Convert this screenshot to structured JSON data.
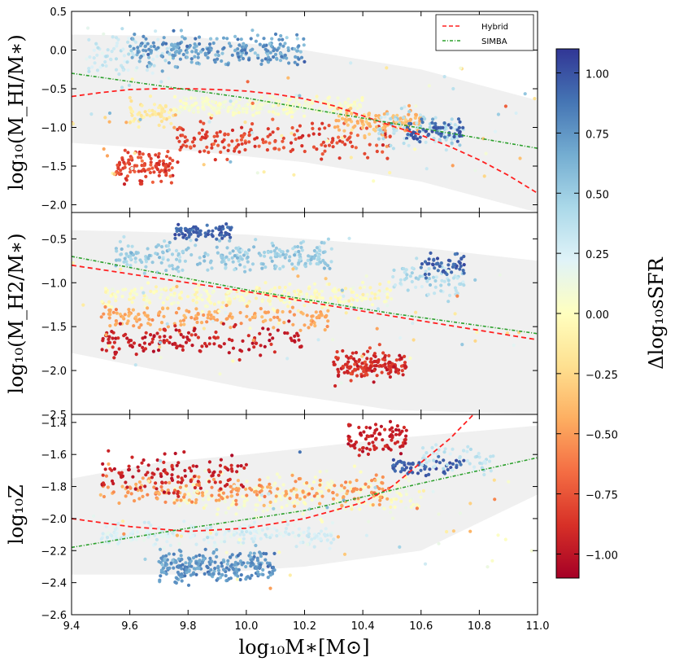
{
  "chart_data": {
    "type": "scatter",
    "colorbar": {
      "label": "Δlog₁₀sSFR",
      "range": [
        -1.1,
        1.1
      ],
      "ticks": [
        "1.00",
        "0.75",
        "0.50",
        "0.25",
        "0.00",
        "−0.25",
        "−0.50",
        "−0.75",
        "−1.00"
      ],
      "tick_values": [
        1.0,
        0.75,
        0.5,
        0.25,
        0.0,
        -0.25,
        -0.5,
        -0.75,
        -1.0
      ],
      "colormap": "RdYlBu"
    },
    "x": {
      "label": "log₁₀M∗[M⊙]",
      "range": [
        9.4,
        11.0
      ],
      "tick_values": [
        9.4,
        9.6,
        9.8,
        10.0,
        10.2,
        10.4,
        10.6,
        10.8,
        11.0
      ],
      "tick_labels": [
        "9.4",
        "9.6",
        "9.8",
        "10.0",
        "10.2",
        "10.4",
        "10.6",
        "10.8",
        "11.0"
      ]
    },
    "legend": {
      "position": "top-right",
      "entries": [
        {
          "name": "Hybrid",
          "color": "#ff2020",
          "style": "dashed"
        },
        {
          "name": "SIMBA",
          "color": "#2ca02c",
          "style": "dashdot"
        }
      ]
    },
    "panels": [
      {
        "ylabel": "log₁₀(M_HI/M∗)",
        "ylim": [
          -2.1,
          0.5
        ],
        "yticks": [
          0.5,
          0.0,
          -0.5,
          -1.0,
          -1.5,
          -2.0
        ],
        "ytick_labels": [
          "0.5",
          "0.0",
          "−0.5",
          "−1.0",
          "−1.5",
          "−2.0"
        ],
        "band_upper": [
          [
            9.4,
            0.2
          ],
          [
            9.8,
            0.18
          ],
          [
            10.2,
            0.0
          ],
          [
            10.6,
            -0.25
          ],
          [
            11.0,
            -0.65
          ]
        ],
        "band_lower": [
          [
            9.4,
            -1.2
          ],
          [
            9.8,
            -1.3
          ],
          [
            10.2,
            -1.45
          ],
          [
            10.6,
            -1.7
          ],
          [
            11.0,
            -2.1
          ]
        ],
        "hybrid": [
          [
            9.4,
            -0.6
          ],
          [
            9.5,
            -0.55
          ],
          [
            9.6,
            -0.51
          ],
          [
            9.7,
            -0.5
          ],
          [
            9.8,
            -0.5
          ],
          [
            9.9,
            -0.51
          ],
          [
            10.0,
            -0.53
          ],
          [
            10.1,
            -0.57
          ],
          [
            10.2,
            -0.63
          ],
          [
            10.3,
            -0.72
          ],
          [
            10.4,
            -0.85
          ],
          [
            10.5,
            -0.98
          ],
          [
            10.6,
            -1.1
          ],
          [
            10.7,
            -1.25
          ],
          [
            10.8,
            -1.42
          ],
          [
            10.9,
            -1.62
          ],
          [
            11.0,
            -1.85
          ]
        ],
        "simba": [
          [
            9.4,
            -0.3
          ],
          [
            10.0,
            -0.62
          ],
          [
            10.4,
            -0.88
          ],
          [
            11.0,
            -1.27
          ]
        ],
        "clusters": [
          {
            "x": [
              9.45,
              9.75
            ],
            "y": [
              -0.6,
              0.4
            ],
            "c": [
              0.1,
              0.5
            ],
            "n": 90
          },
          {
            "x": [
              9.6,
              10.2
            ],
            "y": [
              -0.3,
              0.3
            ],
            "c": [
              0.4,
              1.0
            ],
            "n": 260
          },
          {
            "x": [
              9.75,
              10.4
            ],
            "y": [
              -0.9,
              -0.55
            ],
            "c": [
              -0.1,
              0.2
            ],
            "n": 230
          },
          {
            "x": [
              9.6,
              9.75
            ],
            "y": [
              -1.1,
              -0.55
            ],
            "c": [
              -0.3,
              0.0
            ],
            "n": 60
          },
          {
            "x": [
              9.55,
              9.75
            ],
            "y": [
              -1.8,
              -1.2
            ],
            "c": [
              -1.0,
              -0.6
            ],
            "n": 110
          },
          {
            "x": [
              9.75,
              10.5
            ],
            "y": [
              -1.5,
              -0.8
            ],
            "c": [
              -1.0,
              -0.6
            ],
            "n": 180
          },
          {
            "x": [
              10.3,
              10.6
            ],
            "y": [
              -1.15,
              -0.7
            ],
            "c": [
              -0.6,
              -0.2
            ],
            "n": 120
          },
          {
            "x": [
              10.45,
              10.75
            ],
            "y": [
              -1.35,
              -0.7
            ],
            "c": [
              0.2,
              0.6
            ],
            "n": 90
          },
          {
            "x": [
              10.55,
              10.75
            ],
            "y": [
              -1.25,
              -0.85
            ],
            "c": [
              0.8,
              1.1
            ],
            "n": 60
          },
          {
            "x": [
              9.4,
              11.0
            ],
            "y": [
              -2.1,
              0.4
            ],
            "c": [
              -1.1,
              1.1
            ],
            "n": 80
          }
        ]
      },
      {
        "ylabel": "log₁₀(M_H2/M∗)",
        "ylim": [
          -2.5,
          -0.2
        ],
        "yticks": [
          -0.5,
          -1.0,
          -1.5,
          -2.0,
          -2.5
        ],
        "ytick_labels": [
          "−0.5",
          "−1.0",
          "−1.5",
          "−2.0",
          "−2.5"
        ],
        "band_upper": [
          [
            9.4,
            -0.4
          ],
          [
            10.0,
            -0.45
          ],
          [
            10.6,
            -0.6
          ],
          [
            11.0,
            -0.75
          ]
        ],
        "band_lower": [
          [
            9.4,
            -1.8
          ],
          [
            10.0,
            -2.2
          ],
          [
            10.5,
            -2.45
          ],
          [
            11.0,
            -2.5
          ]
        ],
        "hybrid": [
          [
            9.4,
            -0.8
          ],
          [
            10.0,
            -1.1
          ],
          [
            10.5,
            -1.38
          ],
          [
            11.0,
            -1.65
          ]
        ],
        "simba": [
          [
            9.4,
            -0.7
          ],
          [
            10.0,
            -1.08
          ],
          [
            10.5,
            -1.35
          ],
          [
            11.0,
            -1.58
          ]
        ],
        "clusters": [
          {
            "x": [
              9.55,
              10.3
            ],
            "y": [
              -0.95,
              -0.45
            ],
            "c": [
              0.3,
              0.7
            ],
            "n": 260
          },
          {
            "x": [
              9.75,
              9.95
            ],
            "y": [
              -0.55,
              -0.3
            ],
            "c": [
              0.8,
              1.1
            ],
            "n": 80
          },
          {
            "x": [
              9.5,
              10.5
            ],
            "y": [
              -1.35,
              -0.95
            ],
            "c": [
              -0.2,
              0.2
            ],
            "n": 280
          },
          {
            "x": [
              9.5,
              10.3
            ],
            "y": [
              -1.6,
              -1.2
            ],
            "c": [
              -0.6,
              -0.3
            ],
            "n": 160
          },
          {
            "x": [
              9.5,
              10.2
            ],
            "y": [
              -1.9,
              -1.4
            ],
            "c": [
              -1.1,
              -0.8
            ],
            "n": 150
          },
          {
            "x": [
              10.3,
              10.55
            ],
            "y": [
              -2.2,
              -1.7
            ],
            "c": [
              -1.1,
              -0.7
            ],
            "n": 150
          },
          {
            "x": [
              10.5,
              10.75
            ],
            "y": [
              -1.3,
              -0.65
            ],
            "c": [
              0.2,
              0.6
            ],
            "n": 70
          },
          {
            "x": [
              10.6,
              10.75
            ],
            "y": [
              -1.0,
              -0.6
            ],
            "c": [
              0.8,
              1.1
            ],
            "n": 50
          },
          {
            "x": [
              9.4,
              11.0
            ],
            "y": [
              -2.5,
              -0.3
            ],
            "c": [
              -1.1,
              1.1
            ],
            "n": 70
          }
        ]
      },
      {
        "ylabel": "log₁₀Z",
        "ylim": [
          -2.6,
          -1.35
        ],
        "yticks": [
          -1.4,
          -1.6,
          -1.8,
          -2.0,
          -2.2,
          -2.4,
          -2.6
        ],
        "ytick_labels": [
          "−1.4",
          "−1.6",
          "−1.8",
          "−2.0",
          "−2.2",
          "−2.4",
          "−2.6"
        ],
        "band_upper": [
          [
            9.4,
            -1.75
          ],
          [
            9.7,
            -1.65
          ],
          [
            10.0,
            -1.6
          ],
          [
            10.5,
            -1.5
          ],
          [
            11.0,
            -1.42
          ]
        ],
        "band_lower": [
          [
            9.4,
            -2.35
          ],
          [
            9.8,
            -2.35
          ],
          [
            10.2,
            -2.3
          ],
          [
            10.6,
            -2.2
          ],
          [
            11.0,
            -1.85
          ]
        ],
        "hybrid": [
          [
            9.4,
            -2.0
          ],
          [
            9.6,
            -2.05
          ],
          [
            9.8,
            -2.08
          ],
          [
            10.0,
            -2.06
          ],
          [
            10.2,
            -2.0
          ],
          [
            10.4,
            -1.9
          ],
          [
            10.5,
            -1.8
          ],
          [
            10.6,
            -1.65
          ],
          [
            10.7,
            -1.5
          ],
          [
            10.78,
            -1.35
          ]
        ],
        "simba": [
          [
            9.4,
            -2.18
          ],
          [
            9.8,
            -2.06
          ],
          [
            10.2,
            -1.95
          ],
          [
            10.6,
            -1.78
          ],
          [
            11.0,
            -1.62
          ]
        ],
        "clusters": [
          {
            "x": [
              9.7,
              10.1
            ],
            "y": [
              -2.45,
              -2.15
            ],
            "c": [
              0.5,
              1.0
            ],
            "n": 260
          },
          {
            "x": [
              9.5,
              10.3
            ],
            "y": [
              -2.2,
              -2.0
            ],
            "c": [
              0.1,
              0.4
            ],
            "n": 220
          },
          {
            "x": [
              9.75,
              10.6
            ],
            "y": [
              -2.05,
              -1.65
            ],
            "c": [
              -0.1,
              0.2
            ],
            "n": 220
          },
          {
            "x": [
              9.5,
              10.5
            ],
            "y": [
              -1.95,
              -1.7
            ],
            "c": [
              -0.7,
              -0.3
            ],
            "n": 200
          },
          {
            "x": [
              9.5,
              10.0
            ],
            "y": [
              -1.9,
              -1.55
            ],
            "c": [
              -1.1,
              -0.8
            ],
            "n": 120
          },
          {
            "x": [
              10.35,
              10.55
            ],
            "y": [
              -1.65,
              -1.35
            ],
            "c": [
              -1.1,
              -0.8
            ],
            "n": 90
          },
          {
            "x": [
              10.5,
              10.75
            ],
            "y": [
              -1.75,
              -1.6
            ],
            "c": [
              0.8,
              1.1
            ],
            "n": 60
          },
          {
            "x": [
              10.6,
              10.85
            ],
            "y": [
              -1.75,
              -1.5
            ],
            "c": [
              0.2,
              0.5
            ],
            "n": 50
          },
          {
            "x": [
              9.4,
              11.0
            ],
            "y": [
              -2.6,
              -1.35
            ],
            "c": [
              -1.1,
              1.1
            ],
            "n": 60
          }
        ]
      }
    ]
  }
}
